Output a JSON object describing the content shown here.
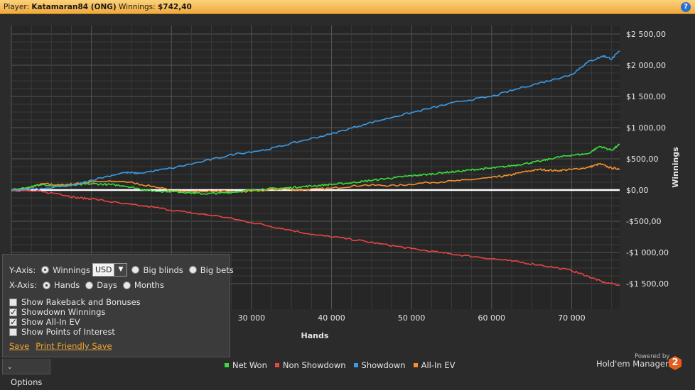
{
  "header": {
    "player_label": "Player:",
    "player_name": "Katamaran84 (ONG)",
    "winnings_label": "Winnings:",
    "winnings_value": "$742,40",
    "help_icon": "help-icon"
  },
  "chart_data": {
    "type": "line",
    "xlabel": "Hands",
    "ylabel": "Winnings",
    "xlim": [
      0,
      76000
    ],
    "ylim": [
      -1500,
      2500
    ],
    "x_ticks": [
      30000,
      40000,
      50000,
      60000,
      70000
    ],
    "x_tick_labels": [
      "30 000",
      "40 000",
      "50 000",
      "60 000",
      "70 000"
    ],
    "y_ticks": [
      2500,
      2000,
      1500,
      1000,
      500,
      0,
      -500,
      -1000,
      -1500
    ],
    "y_tick_labels": [
      "$2 500,00",
      "$2 000,00",
      "$1 500,00",
      "$1 000,00",
      "$500,00",
      "$0,00",
      "-$500,00",
      "-$1 000,00",
      "-$1 500,00"
    ],
    "grid": true,
    "legend_position": "bottom",
    "series": [
      {
        "name": "Net Won",
        "color": "#3ddc3d",
        "x": [
          0,
          2000,
          4000,
          6000,
          8000,
          10000,
          12000,
          14000,
          16000,
          18000,
          20000,
          22000,
          24000,
          26000,
          28000,
          30000,
          32000,
          34000,
          36000,
          38000,
          40000,
          42000,
          44000,
          46000,
          48000,
          50000,
          52000,
          54000,
          56000,
          58000,
          60000,
          62000,
          64000,
          66000,
          68000,
          70000,
          72000,
          73500,
          75000,
          76000
        ],
        "y": [
          0,
          40,
          90,
          60,
          80,
          100,
          90,
          70,
          20,
          -20,
          -20,
          -40,
          -60,
          -50,
          -30,
          0,
          20,
          30,
          50,
          70,
          90,
          110,
          140,
          170,
          200,
          230,
          250,
          280,
          300,
          330,
          350,
          380,
          420,
          460,
          520,
          560,
          580,
          700,
          640,
          730
        ]
      },
      {
        "name": "Non Showdown",
        "color": "#e84545",
        "x": [
          0,
          3000,
          6000,
          8000,
          10000,
          14000,
          18000,
          22000,
          26000,
          30000,
          34000,
          38000,
          42000,
          46000,
          50000,
          54000,
          58000,
          62000,
          66000,
          70000,
          72000,
          74000,
          76000
        ],
        "y": [
          0,
          -20,
          -60,
          -120,
          -140,
          -220,
          -280,
          -360,
          -420,
          -520,
          -620,
          -720,
          -780,
          -860,
          -940,
          -1010,
          -1070,
          -1130,
          -1200,
          -1290,
          -1380,
          -1480,
          -1520
        ]
      },
      {
        "name": "Showdown",
        "color": "#3a9be8",
        "x": [
          0,
          4000,
          8000,
          10000,
          14000,
          16000,
          20000,
          24000,
          28000,
          32000,
          36000,
          40000,
          44000,
          48000,
          52000,
          56000,
          60000,
          64000,
          68000,
          70000,
          72000,
          74000,
          75000,
          76000
        ],
        "y": [
          0,
          20,
          80,
          160,
          280,
          270,
          350,
          460,
          580,
          650,
          780,
          900,
          1050,
          1180,
          1300,
          1420,
          1500,
          1650,
          1780,
          1850,
          2050,
          2150,
          2100,
          2230
        ]
      },
      {
        "name": "All-In EV",
        "color": "#f2912f",
        "x": [
          0,
          2000,
          4000,
          6000,
          8000,
          10000,
          14000,
          18000,
          20000,
          22000,
          24000,
          26000,
          28000,
          30000,
          34000,
          36000,
          40000,
          44000,
          48000,
          52000,
          56000,
          60000,
          62000,
          64000,
          66000,
          68000,
          70000,
          72000,
          73500,
          75000,
          76000
        ],
        "y": [
          0,
          30,
          100,
          80,
          100,
          130,
          140,
          50,
          -10,
          -30,
          -20,
          -20,
          -30,
          -20,
          20,
          0,
          30,
          80,
          70,
          120,
          150,
          200,
          230,
          290,
          330,
          310,
          330,
          360,
          420,
          350,
          340
        ]
      }
    ]
  },
  "options_panel": {
    "yaxis_label": "Y-Axis:",
    "y_winnings": "Winnings",
    "currency_value": "USD",
    "y_bigblinds": "Big blinds",
    "y_bigbets": "Big bets",
    "xaxis_label": "X-Axis:",
    "x_hands": "Hands",
    "x_days": "Days",
    "x_months": "Months",
    "cb_rakeback": "Show Rakeback and Bonuses",
    "cb_showdown": "Showdown Winnings",
    "cb_allin": "Show All-In EV",
    "cb_poi": "Show Points of Interest",
    "save": "Save",
    "print_save": "Print Friendly Save"
  },
  "options_tab": {
    "label": "Options"
  },
  "legend": {
    "items": [
      "Net Won",
      "Non Showdown",
      "Showdown",
      "All-In EV"
    ]
  },
  "branding": {
    "powered_by": "Powered by",
    "product": "Hold'em Manager",
    "logo_char": "2"
  }
}
